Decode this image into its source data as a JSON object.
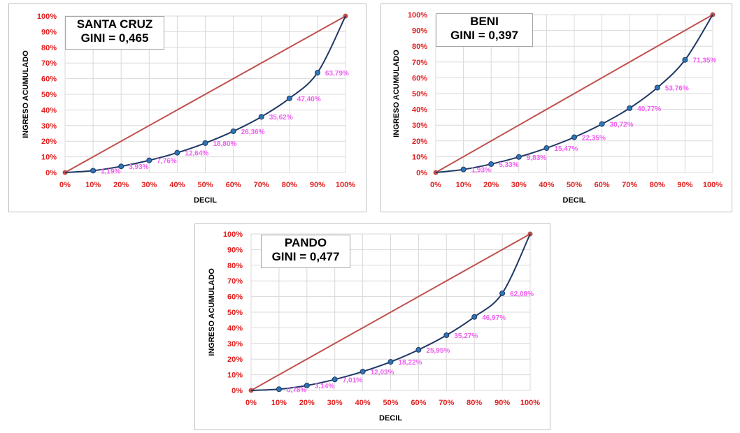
{
  "chart_data": [
    {
      "type": "line",
      "title": "SANTA CRUZ",
      "subtitle": "GINI = 0,465",
      "xlabel": "DECIL",
      "ylabel": "INGRESO ACUMULADO",
      "x_ticks": [
        "0%",
        "10%",
        "20%",
        "30%",
        "40%",
        "50%",
        "60%",
        "70%",
        "80%",
        "90%",
        "100%"
      ],
      "y_ticks": [
        "0%",
        "10%",
        "20%",
        "30%",
        "40%",
        "50%",
        "60%",
        "70%",
        "80%",
        "90%",
        "100%"
      ],
      "xlim": [
        0,
        100
      ],
      "ylim": [
        0,
        100
      ],
      "grid": true,
      "colors": {
        "lorenz": "#1f3864",
        "marker": "#2e75b6",
        "equality": "#c0504d",
        "labels": "#f060f0",
        "ticks": "#e02020"
      },
      "series": [
        {
          "x": [
            0,
            10,
            20,
            30,
            40,
            50,
            60,
            70,
            80,
            90,
            100
          ],
          "y": [
            0,
            1.19,
            3.93,
            7.76,
            12.64,
            18.8,
            26.36,
            35.62,
            47.4,
            63.79,
            100
          ],
          "labels": [
            "",
            "1,19%",
            "3,93%",
            "7,76%",
            "12,64%",
            "18,80%",
            "26,36%",
            "35,62%",
            "47,40%",
            "63,79%",
            ""
          ]
        },
        {
          "x": [
            0,
            100
          ],
          "y": [
            0,
            100
          ]
        }
      ]
    },
    {
      "type": "line",
      "title": "BENI",
      "subtitle": "GINI = 0,397",
      "xlabel": "DECIL",
      "ylabel": "INGRESO ACUMULADO",
      "x_ticks": [
        "0%",
        "10%",
        "20%",
        "30%",
        "40%",
        "50%",
        "60%",
        "70%",
        "80%",
        "90%",
        "100%"
      ],
      "y_ticks": [
        "0%",
        "10%",
        "20%",
        "30%",
        "40%",
        "50%",
        "60%",
        "70%",
        "80%",
        "90%",
        "100%"
      ],
      "xlim": [
        0,
        100
      ],
      "ylim": [
        0,
        100
      ],
      "grid": true,
      "colors": {
        "lorenz": "#1f3864",
        "marker": "#2e75b6",
        "equality": "#c0504d",
        "labels": "#f060f0",
        "ticks": "#e02020"
      },
      "series": [
        {
          "x": [
            0,
            10,
            20,
            30,
            40,
            50,
            60,
            70,
            80,
            90,
            100
          ],
          "y": [
            0,
            1.93,
            5.33,
            9.83,
            15.47,
            22.35,
            30.72,
            40.77,
            53.76,
            71.35,
            100
          ],
          "labels": [
            "",
            "1,93%",
            "5,33%",
            "9,83%",
            "15,47%",
            "22,35%",
            "30,72%",
            "40,77%",
            "53,76%",
            "71,35%",
            ""
          ]
        },
        {
          "x": [
            0,
            100
          ],
          "y": [
            0,
            100
          ]
        }
      ]
    },
    {
      "type": "line",
      "title": "PANDO",
      "subtitle": "GINI = 0,477",
      "xlabel": "DECIL",
      "ylabel": "INGRESO ACUMULADO",
      "x_ticks": [
        "0%",
        "10%",
        "20%",
        "30%",
        "40%",
        "50%",
        "60%",
        "70%",
        "80%",
        "90%",
        "100%"
      ],
      "y_ticks": [
        "0%",
        "10%",
        "20%",
        "30%",
        "40%",
        "50%",
        "60%",
        "70%",
        "80%",
        "90%",
        "100%"
      ],
      "xlim": [
        0,
        100
      ],
      "ylim": [
        0,
        100
      ],
      "grid": true,
      "colors": {
        "lorenz": "#1f3864",
        "marker": "#2e75b6",
        "equality": "#c0504d",
        "labels": "#f060f0",
        "ticks": "#e02020"
      },
      "series": [
        {
          "x": [
            0,
            10,
            20,
            30,
            40,
            50,
            60,
            70,
            80,
            90,
            100
          ],
          "y": [
            0,
            0.78,
            3.14,
            7.01,
            12.03,
            18.22,
            25.95,
            35.27,
            46.97,
            62.08,
            100
          ],
          "labels": [
            "",
            "0,78%",
            "3,14%",
            "7,01%",
            "12,03%",
            "18,22%",
            "25,95%",
            "35,27%",
            "46,97%",
            "62,08%",
            ""
          ]
        },
        {
          "x": [
            0,
            100
          ],
          "y": [
            0,
            100
          ]
        }
      ]
    }
  ]
}
